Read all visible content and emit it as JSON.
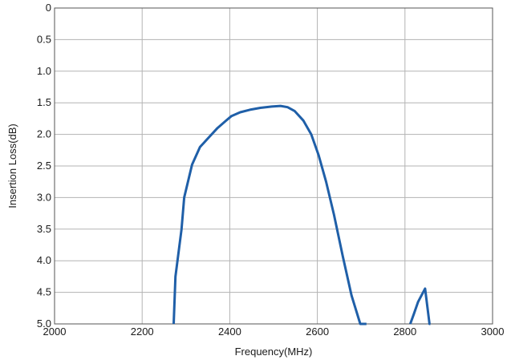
{
  "chart_data": {
    "type": "line",
    "xlabel": "Frequency(MHz)",
    "ylabel": "Insertion Loss(dB)",
    "xlim": [
      2000,
      3000
    ],
    "ylim": [
      0,
      5.0
    ],
    "y_inverted": true,
    "grid": true,
    "x_ticks": [
      2000,
      2200,
      2400,
      2600,
      2800,
      3000
    ],
    "x_tick_labels": [
      "2000",
      "2200",
      "2400",
      "2600",
      "2800",
      "3000"
    ],
    "y_ticks": [
      0,
      0.5,
      1.0,
      1.5,
      2.0,
      2.5,
      3.0,
      3.5,
      4.0,
      4.5,
      5.0
    ],
    "y_tick_labels": [
      "0",
      "0.5",
      "1.0",
      "1.5",
      "2.0",
      "2.5",
      "3.0",
      "3.5",
      "4.0",
      "4.5",
      "5.0"
    ],
    "line_color": "#1f5fa8",
    "series": [
      {
        "segments": [
          {
            "x": [
              2272,
              2276,
              2290,
              2296,
              2314,
              2332,
              2352,
              2372,
              2392,
              2404,
              2424,
              2446,
              2470,
              2496,
              2516,
              2532,
              2548,
              2568,
              2586,
              2603,
              2620,
              2638,
              2658,
              2678,
              2698,
              2712
            ],
            "y": [
              5.0,
              4.25,
              3.5,
              3.0,
              2.48,
              2.2,
              2.05,
              1.9,
              1.78,
              1.71,
              1.65,
              1.61,
              1.58,
              1.56,
              1.55,
              1.57,
              1.63,
              1.78,
              2.0,
              2.33,
              2.75,
              3.27,
              3.93,
              4.55,
              5.0,
              5.0
            ]
          },
          {
            "x": [
              2812,
              2820,
              2830,
              2846,
              2856,
              2858
            ],
            "y": [
              5.0,
              4.85,
              4.65,
              4.44,
              5.0,
              5.0
            ]
          }
        ]
      }
    ]
  }
}
